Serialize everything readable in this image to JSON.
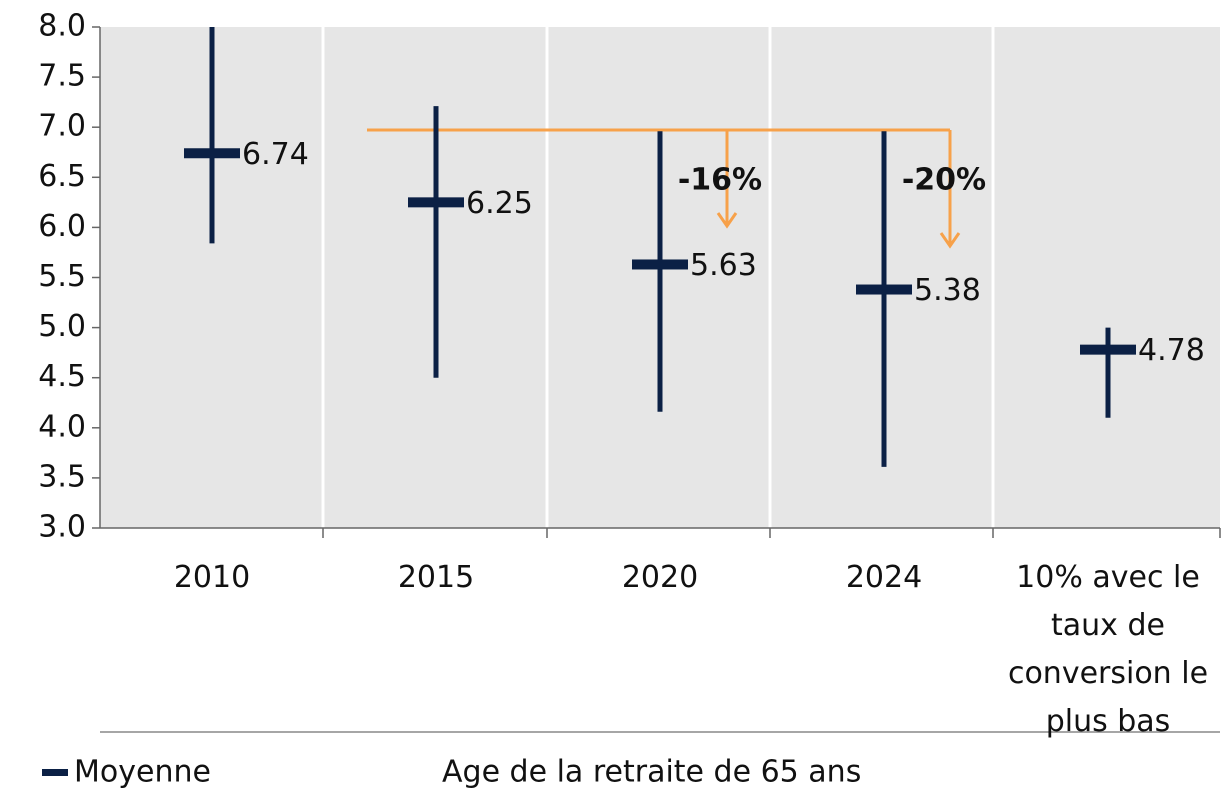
{
  "chart_data": {
    "type": "range",
    "categories": [
      "2010",
      "2015",
      "2020",
      "2024",
      "10% avec le taux de conversion le plus bas"
    ],
    "series": [
      {
        "name": "Moyenne",
        "color": "#0b2045",
        "values": [
          6.74,
          6.25,
          5.63,
          5.38,
          4.78
        ],
        "low": [
          5.84,
          4.5,
          4.16,
          3.61,
          4.1
        ],
        "high": [
          8.0,
          7.21,
          6.96,
          6.96,
          5.0
        ]
      }
    ],
    "ylim": [
      3,
      8
    ],
    "yticks": [
      {
        "value": 3,
        "label": "3.0"
      },
      3.5,
      {
        "value": 4,
        "label": "4.0"
      },
      4.5,
      {
        "value": 5,
        "label": "5.0"
      },
      5.5,
      {
        "value": 6,
        "label": "6.0"
      },
      6.5,
      {
        "value": 7,
        "label": "7.0"
      },
      7.5,
      {
        "value": 8,
        "label": "8.0"
      }
    ],
    "annotations": [
      "-16%",
      "-20%"
    ],
    "note": "Age de la retraite de 65 ans",
    "legend": "bottom-left"
  }
}
